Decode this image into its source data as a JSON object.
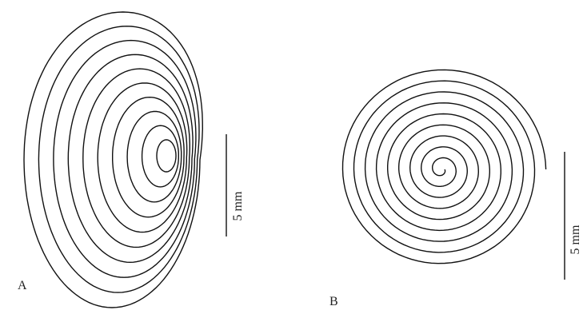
{
  "panels": [
    {
      "label": "A",
      "scale_label": "5 mm"
    },
    {
      "label": "B",
      "scale_label": "5 mm"
    }
  ]
}
